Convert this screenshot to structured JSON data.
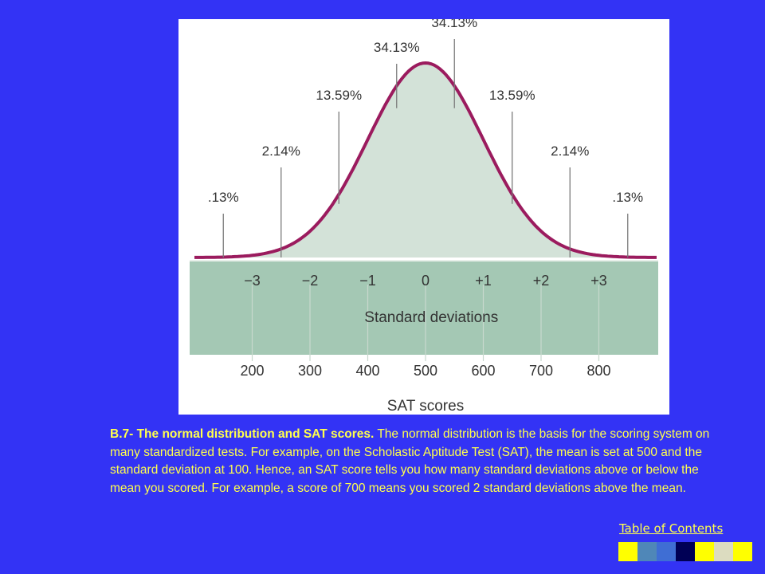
{
  "chart_data": {
    "type": "area",
    "mean": 0,
    "sd": 1,
    "x_range": [
      -4,
      4
    ],
    "region_labels": [
      {
        "label": ".13%",
        "at": -3.5
      },
      {
        "label": "2.14%",
        "at": -2.5
      },
      {
        "label": "13.59%",
        "at": -1.5
      },
      {
        "label": "34.13%",
        "at": -0.5
      },
      {
        "label": "34.13%",
        "at": 0.5
      },
      {
        "label": "13.59%",
        "at": 1.5
      },
      {
        "label": "2.14%",
        "at": 2.5
      },
      {
        "label": ".13%",
        "at": 3.5
      }
    ],
    "sd_ticks": [
      {
        "value": -3,
        "label": "−3"
      },
      {
        "value": -2,
        "label": "−2"
      },
      {
        "value": -1,
        "label": "−1"
      },
      {
        "value": 0,
        "label": "0"
      },
      {
        "value": 1,
        "label": "+1"
      },
      {
        "value": 2,
        "label": "+2"
      },
      {
        "value": 3,
        "label": "+3"
      }
    ],
    "sat_ticks": [
      {
        "value": -3,
        "label": "200"
      },
      {
        "value": -2,
        "label": "300"
      },
      {
        "value": -1,
        "label": "400"
      },
      {
        "value": 0,
        "label": "500"
      },
      {
        "value": 1,
        "label": "600"
      },
      {
        "value": 2,
        "label": "700"
      },
      {
        "value": 3,
        "label": "800"
      }
    ],
    "band_label": "Standard deviations",
    "xlabel": "SAT scores",
    "colors": {
      "curve": "#9b1b5e",
      "fill": "#d3e2d8",
      "band": "#a4c8b4",
      "text": "#333333"
    }
  },
  "caption": {
    "title": "B.7- The normal distribution and SAT scores.",
    "body": " The normal distribution is the basis for the scoring system on many standardized tests. For example, on the Scholastic Aptitude Test (SAT), the mean is set at 500 and the standard deviation at 100. Hence, an SAT score tells you how many standard deviations above or below the mean you scored. For example, a score of 700 means you scored 2 standard deviations above the mean."
  },
  "nav": {
    "toc_label": "Table of Contents",
    "colors": [
      "#ffff00",
      "#4f87b8",
      "#3f6ed4",
      "#000055",
      "#ffff00",
      "#dcdcc0",
      "#ffff00"
    ]
  }
}
